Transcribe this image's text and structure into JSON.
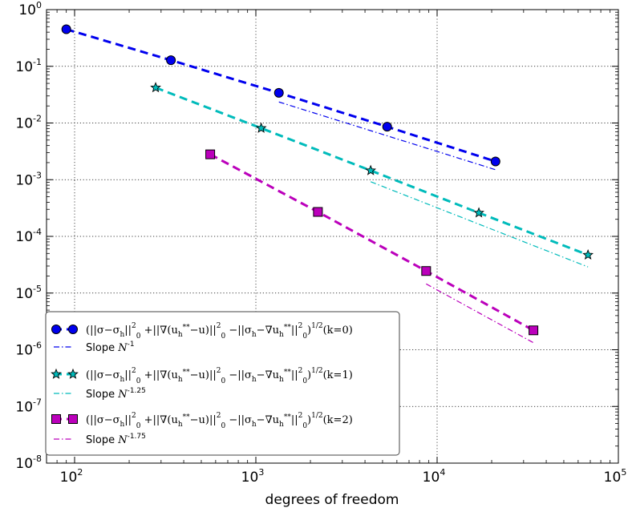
{
  "chart_data": {
    "type": "line",
    "xscale": "log",
    "yscale": "log",
    "xlabel": "degrees of freedom",
    "ylabel": "",
    "title": "",
    "xlim": [
      70,
      100000
    ],
    "ylim": [
      1e-08,
      1
    ],
    "grid": true,
    "x_tick_labels": [
      {
        "base": "10",
        "exp": "2",
        "value": 100
      },
      {
        "base": "10",
        "exp": "3",
        "value": 1000
      },
      {
        "base": "10",
        "exp": "4",
        "value": 10000
      },
      {
        "base": "10",
        "exp": "5",
        "value": 100000
      }
    ],
    "y_tick_labels": [
      {
        "base": "10",
        "exp": "0",
        "value": 1
      },
      {
        "base": "10",
        "exp": "-1",
        "value": 0.1
      },
      {
        "base": "10",
        "exp": "-2",
        "value": 0.01
      },
      {
        "base": "10",
        "exp": "-3",
        "value": 0.001
      },
      {
        "base": "10",
        "exp": "-4",
        "value": 0.0001
      },
      {
        "base": "10",
        "exp": "-5",
        "value": 1e-05
      },
      {
        "base": "10",
        "exp": "-6",
        "value": 1e-06
      },
      {
        "base": "10",
        "exp": "-7",
        "value": 1e-07
      },
      {
        "base": "10",
        "exp": "-8",
        "value": 1e-08
      }
    ],
    "legend_position": "lower-left",
    "series": [
      {
        "name": "(||σ−σh||0^2 +||∇(uh**−u)||0^2 −||σh−∇uh**||0^2)^1/2 (k=0)",
        "marker": "circle",
        "color": "#0000ee",
        "style": "dashed",
        "x": [
          90,
          340,
          1340,
          5300,
          21000
        ],
        "y": [
          0.45,
          0.128,
          0.034,
          0.0086,
          0.0021
        ]
      },
      {
        "name": "Slope N^-1",
        "color": "#0000ee",
        "style": "dashdot",
        "x": [
          1340,
          21000
        ],
        "y": [
          0.0235,
          0.0015
        ]
      },
      {
        "name": "(||σ−σh||0^2 +||∇(uh**−u)||0^2 −||σh−∇uh**||0^2)^1/2 (k=1)",
        "marker": "star",
        "color": "#00bbbb",
        "style": "dashed",
        "x": [
          280,
          1070,
          4300,
          17000,
          68000
        ],
        "y": [
          0.042,
          0.0081,
          0.00145,
          0.00026,
          4.7e-05
        ]
      },
      {
        "name": "Slope N^-1.25",
        "color": "#00bbbb",
        "style": "dashdot",
        "x": [
          4300,
          68000
        ],
        "y": [
          0.00092,
          2.89e-05
        ]
      },
      {
        "name": "(||σ−σh||0^2 +||∇(uh**−u)||0^2 −||σh−∇uh**||0^2)^1/2 (k=2)",
        "marker": "square",
        "color": "#bb00bb",
        "style": "dashed",
        "x": [
          560,
          2200,
          8700,
          34000
        ],
        "y": [
          0.0028,
          0.00027,
          2.45e-05,
          2.2e-06
        ]
      },
      {
        "name": "Slope N^-1.75",
        "color": "#bb00bb",
        "style": "dashdot",
        "x": [
          8700,
          34000
        ],
        "y": [
          1.45e-05,
          1.33e-06
        ]
      }
    ]
  },
  "legend": {
    "entries": [
      {
        "kind": "main",
        "k": "0",
        "marker": "circle",
        "color": "#0000ee"
      },
      {
        "kind": "slope",
        "label": "Slope",
        "exp": "-1",
        "color": "#0000ee"
      },
      {
        "kind": "main",
        "k": "1",
        "marker": "star",
        "color": "#00bbbb"
      },
      {
        "kind": "slope",
        "label": "Slope",
        "exp": "-1.25",
        "color": "#00bbbb"
      },
      {
        "kind": "main",
        "k": "2",
        "marker": "square",
        "color": "#bb00bb"
      },
      {
        "kind": "slope",
        "label": "Slope",
        "exp": "-1.75",
        "color": "#bb00bb"
      }
    ],
    "formula_prefix": "(||σ−σ",
    "formula_h": "h",
    "formula_mid1": "||",
    "formula_sq": "2",
    "formula_zero": "0",
    "formula_grad": "+||∇(u",
    "formula_stars": "**",
    "formula_minus_u": "−u)||",
    "formula_sigmah": "−||σ",
    "formula_minus_grad": "−∇u",
    "formula_close": "||",
    "formula_paren": ")",
    "formula_half": "1/2",
    "formula_k_prefix": "(k=",
    "formula_k_suffix": ")",
    "slope_N": "N"
  }
}
